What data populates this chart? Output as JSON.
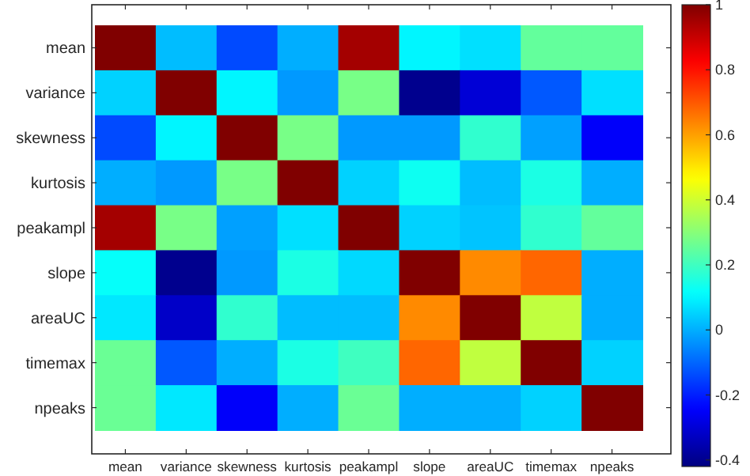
{
  "chart_data": {
    "type": "heatmap",
    "categories": [
      "mean",
      "variance",
      "skewness",
      "kurtosis",
      "peakampl",
      "slope",
      "areaUC",
      "timemax",
      "npeaks"
    ],
    "y_categories": [
      "mean",
      "variance",
      "skewness",
      "kurtosis",
      "peakampl",
      "slope",
      "areaUC",
      "timemax",
      "npeaks"
    ],
    "cells": [
      [
        1,
        0.02,
        -0.14,
        0.0,
        0.95,
        0.1,
        0.07,
        0.25,
        0.25
      ],
      [
        0.05,
        1,
        0.1,
        -0.03,
        0.28,
        -0.4,
        -0.3,
        -0.12,
        0.07
      ],
      [
        -0.14,
        0.1,
        1,
        0.28,
        -0.03,
        -0.03,
        0.18,
        -0.02,
        -0.25
      ],
      [
        0.0,
        -0.03,
        0.28,
        1,
        0.05,
        0.13,
        0.02,
        0.15,
        0.0
      ],
      [
        0.95,
        0.28,
        -0.02,
        0.07,
        1,
        0.05,
        0.03,
        0.18,
        0.25
      ],
      [
        0.12,
        -0.4,
        -0.03,
        0.15,
        0.06,
        1,
        0.63,
        0.68,
        0.0
      ],
      [
        0.08,
        -0.32,
        0.18,
        0.02,
        0.02,
        0.63,
        1,
        0.38,
        0.0
      ],
      [
        0.26,
        -0.12,
        0.0,
        0.15,
        0.2,
        0.68,
        0.38,
        1,
        0.05
      ],
      [
        0.26,
        0.08,
        -0.25,
        0.0,
        0.26,
        0.0,
        0.0,
        0.05,
        1
      ]
    ],
    "clim": [
      -0.42,
      1
    ],
    "cticks": [
      {
        "value": -0.4,
        "label": "-0.4"
      },
      {
        "value": -0.2,
        "label": "-0.2"
      },
      0,
      {
        "value": 0.2,
        "label": "0.2"
      },
      {
        "value": 0.4,
        "label": "0.4"
      },
      {
        "value": 0.6,
        "label": "0.6"
      },
      {
        "value": 0.8,
        "label": "0.8"
      },
      1
    ]
  }
}
